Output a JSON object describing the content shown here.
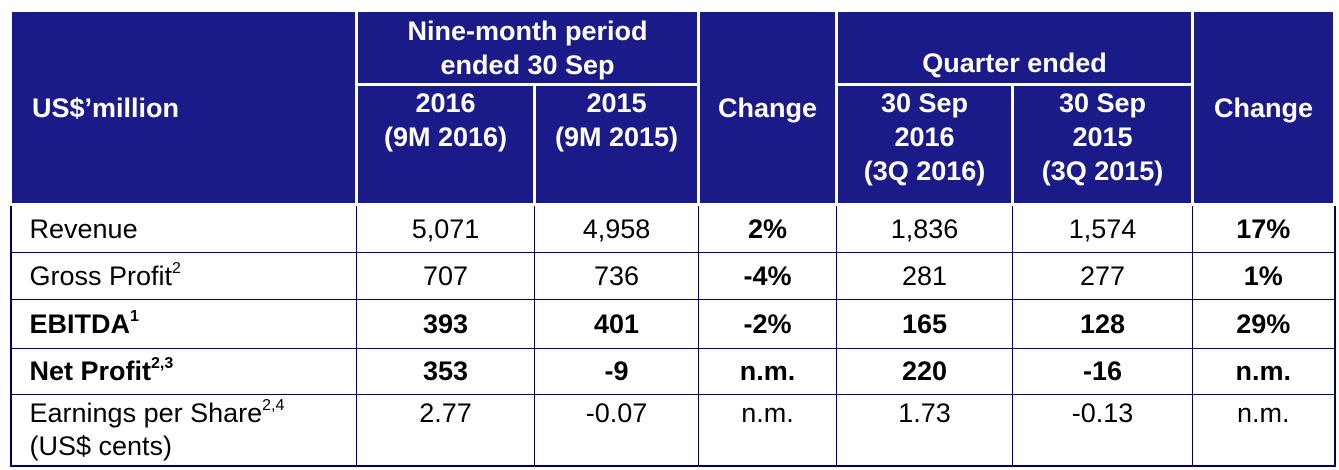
{
  "header": {
    "units_label": "US$’million",
    "nine_month_group": [
      "Nine-month period",
      "ended 30 Sep"
    ],
    "quarter_group": "Quarter ended",
    "change_label": "Change",
    "columns": [
      [
        "2016",
        "(9M 2016)"
      ],
      [
        "2015",
        "(9M 2015)"
      ],
      [
        "30 Sep",
        "2016",
        "(3Q 2016)"
      ],
      [
        "30 Sep",
        "2015",
        "(3Q 2015)"
      ]
    ]
  },
  "rows": [
    {
      "label": "Revenue",
      "sup": "",
      "values": [
        "5,071",
        "4,958",
        "2%",
        "1,836",
        "1,574",
        "17%"
      ]
    },
    {
      "label": "Gross Profit",
      "sup": "2",
      "values": [
        "707",
        "736",
        "-4%",
        "281",
        "277",
        "1%"
      ]
    },
    {
      "label": "EBITDA",
      "sup": "1",
      "values": [
        "393",
        "401",
        "-2%",
        "165",
        "128",
        "29%"
      ]
    },
    {
      "label": "Net Profit",
      "sup": "2,3",
      "values": [
        "353",
        "-9",
        "n.m.",
        "220",
        "-16",
        "n.m."
      ]
    },
    {
      "label": [
        "Earnings per Share",
        "(US$ cents)"
      ],
      "sup": "2,4",
      "values": [
        "2.77",
        "-0.07",
        "n.m.",
        "1.73",
        "-0.13",
        "n.m."
      ]
    }
  ],
  "colors": {
    "header_bg": "#1a1a88",
    "header_text": "#ffffff",
    "border": "#000066"
  }
}
